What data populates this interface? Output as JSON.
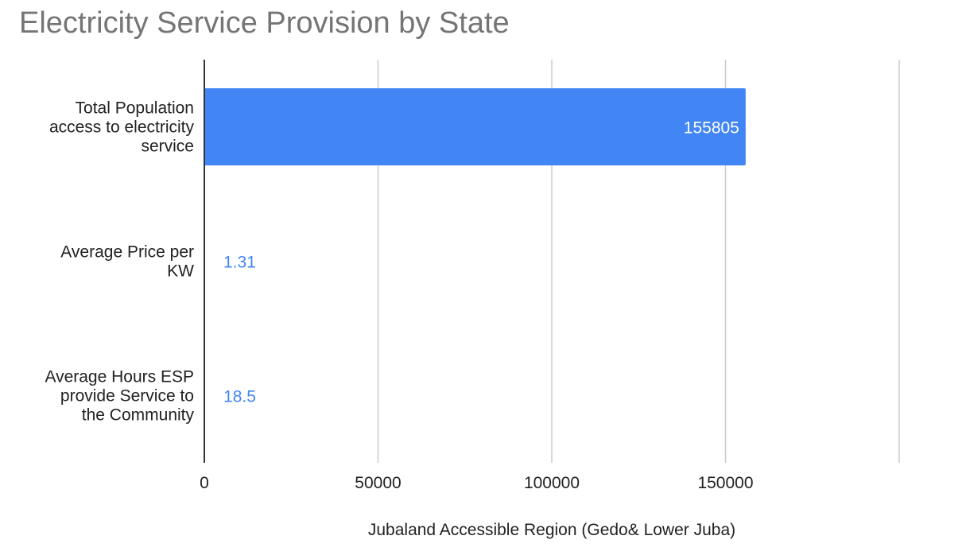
{
  "chart_data": {
    "type": "bar",
    "orientation": "horizontal",
    "title": "Electricity Service Provision by State",
    "xlabel": "Jubaland Accessible Region (Gedo& Lower Juba)",
    "ylabel": "",
    "categories": [
      [
        "Total Population",
        "access to electricity",
        "service"
      ],
      [
        "Average Price per",
        "KW"
      ],
      [
        "Average Hours ESP",
        "provide Service to",
        "the Community"
      ]
    ],
    "series": [
      {
        "values": [
          155805,
          1.31,
          18.5
        ],
        "data_labels": [
          "155805",
          "1.31",
          "18.5"
        ],
        "color": "#4285f4"
      }
    ],
    "xlim": [
      0,
      200000
    ],
    "xticks": [
      0,
      50000,
      100000,
      150000
    ],
    "xtick_labels": [
      "0",
      "50000",
      "100000",
      "150000"
    ],
    "gridlines": [
      50000,
      100000,
      150000,
      200000
    ],
    "grid": true,
    "legend": "none"
  }
}
